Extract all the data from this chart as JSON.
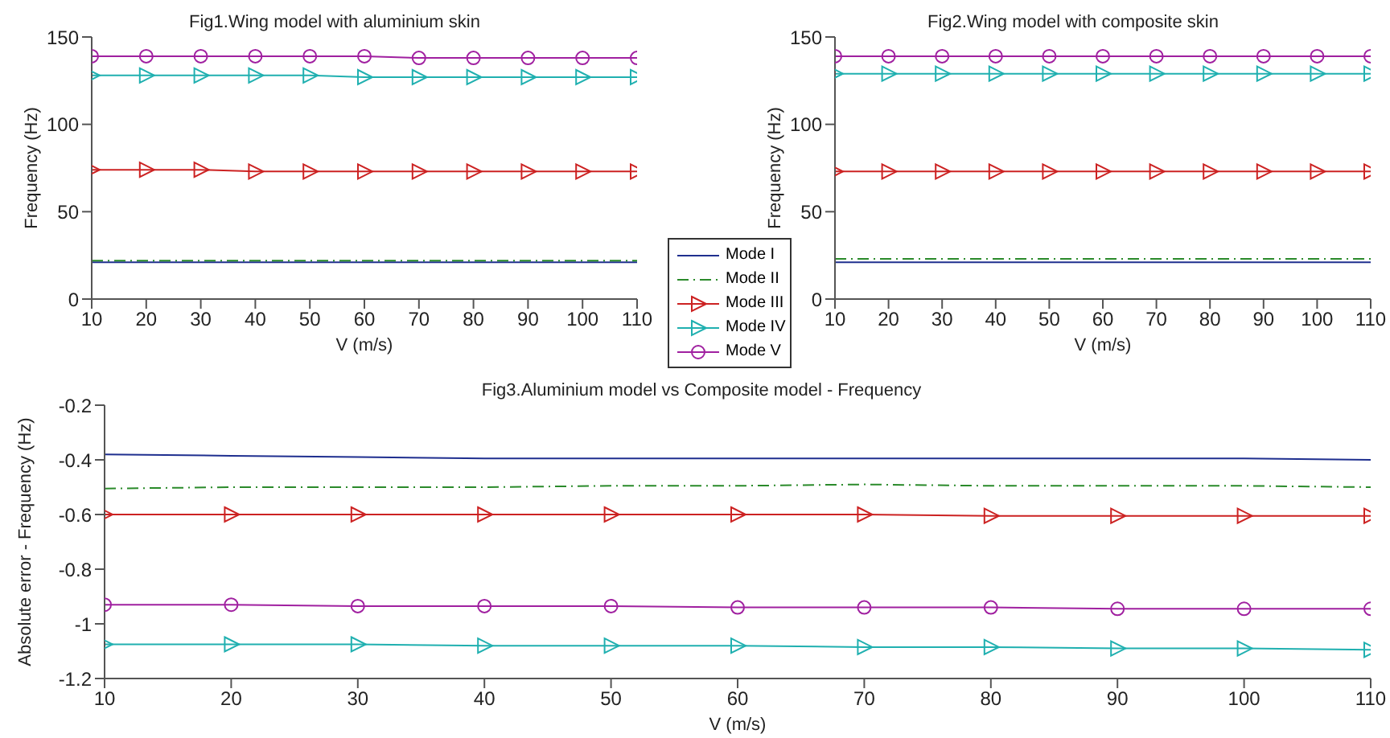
{
  "chart_data": [
    {
      "type": "line",
      "title": "Fig1.Wing model with aluminium skin",
      "xlabel": "V (m/s)",
      "ylabel": "Frequency (Hz)",
      "x": [
        10,
        20,
        30,
        40,
        50,
        60,
        70,
        80,
        90,
        100,
        110
      ],
      "xlim": [
        10,
        110
      ],
      "xticks": [
        10,
        20,
        30,
        40,
        50,
        60,
        70,
        80,
        90,
        100,
        110
      ],
      "ylim": [
        0,
        150
      ],
      "yticks": [
        0,
        50,
        100,
        150
      ],
      "legend": false,
      "series": [
        {
          "color": "#1f2f8f",
          "marker": "none",
          "line_style": "solid",
          "values": [
            21,
            21,
            21,
            21,
            21,
            21,
            21,
            21,
            21,
            21,
            21
          ]
        },
        {
          "color": "#2a8a2a",
          "marker": "none",
          "line_style": "dashed",
          "values": [
            22,
            22,
            22,
            22,
            22,
            22,
            22,
            22,
            22,
            22,
            22
          ]
        },
        {
          "color": "#cc2222",
          "marker": "triangle",
          "line_style": "solid",
          "values": [
            74,
            74,
            74,
            73,
            73,
            73,
            73,
            73,
            73,
            73,
            73
          ]
        },
        {
          "color": "#20b0b0",
          "marker": "triangle",
          "line_style": "solid",
          "values": [
            128,
            128,
            128,
            128,
            128,
            127,
            127,
            127,
            127,
            127,
            127
          ]
        },
        {
          "color": "#a020a0",
          "marker": "circle",
          "line_style": "solid",
          "values": [
            139,
            139,
            139,
            139,
            139,
            139,
            138,
            138,
            138,
            138,
            138
          ]
        }
      ]
    },
    {
      "type": "line",
      "title": "Fig2.Wing model with composite skin",
      "xlabel": "V (m/s)",
      "ylabel": "Frequency (Hz)",
      "x": [
        10,
        20,
        30,
        40,
        50,
        60,
        70,
        80,
        90,
        100,
        110
      ],
      "xlim": [
        10,
        110
      ],
      "xticks": [
        10,
        20,
        30,
        40,
        50,
        60,
        70,
        80,
        90,
        100,
        110
      ],
      "ylim": [
        0,
        150
      ],
      "yticks": [
        0,
        50,
        100,
        150
      ],
      "legend": "bottom left",
      "series": [
        {
          "name": "Mode I",
          "color": "#1f2f8f",
          "marker": "none",
          "line_style": "solid",
          "values": [
            21,
            21,
            21,
            21,
            21,
            21,
            21,
            21,
            21,
            21,
            21
          ]
        },
        {
          "name": "Mode II",
          "color": "#2a8a2a",
          "marker": "none",
          "line_style": "dashed",
          "values": [
            23,
            23,
            23,
            23,
            23,
            23,
            23,
            23,
            23,
            23,
            23
          ]
        },
        {
          "name": "Mode III",
          "color": "#cc2222",
          "marker": "triangle",
          "line_style": "solid",
          "values": [
            73,
            73,
            73,
            73,
            73,
            73,
            73,
            73,
            73,
            73,
            73
          ]
        },
        {
          "name": "Mode IV",
          "color": "#20b0b0",
          "marker": "triangle",
          "line_style": "solid",
          "values": [
            129,
            129,
            129,
            129,
            129,
            129,
            129,
            129,
            129,
            129,
            129
          ]
        },
        {
          "name": "Mode V",
          "color": "#a020a0",
          "marker": "circle",
          "line_style": "solid",
          "values": [
            139,
            139,
            139,
            139,
            139,
            139,
            139,
            139,
            139,
            139,
            139
          ]
        }
      ]
    },
    {
      "type": "line",
      "title": "Fig3.Aluminium model vs Composite model - Frequency",
      "xlabel": "V (m/s)",
      "ylabel": "Absolute error - Frequency (Hz)",
      "x": [
        10,
        20,
        30,
        40,
        50,
        60,
        70,
        80,
        90,
        100,
        110
      ],
      "xlim": [
        10,
        110
      ],
      "xticks": [
        10,
        20,
        30,
        40,
        50,
        60,
        70,
        80,
        90,
        100,
        110
      ],
      "ylim": [
        -1.2,
        -0.2
      ],
      "yticks": [
        -1.2,
        -1,
        -0.8,
        -0.6,
        -0.4,
        -0.2
      ],
      "legend": false,
      "series": [
        {
          "color": "#1f2f8f",
          "marker": "none",
          "line_style": "solid",
          "values": [
            -0.38,
            -0.385,
            -0.39,
            -0.395,
            -0.395,
            -0.395,
            -0.395,
            -0.395,
            -0.395,
            -0.395,
            -0.4
          ]
        },
        {
          "color": "#2a8a2a",
          "marker": "none",
          "line_style": "dashed",
          "values": [
            -0.505,
            -0.5,
            -0.5,
            -0.5,
            -0.495,
            -0.495,
            -0.49,
            -0.495,
            -0.495,
            -0.495,
            -0.5
          ]
        },
        {
          "color": "#cc2222",
          "marker": "triangle",
          "line_style": "solid",
          "values": [
            -0.6,
            -0.6,
            -0.6,
            -0.6,
            -0.6,
            -0.6,
            -0.6,
            -0.605,
            -0.605,
            -0.605,
            -0.605
          ]
        },
        {
          "color": "#20b0b0",
          "marker": "triangle",
          "line_style": "solid",
          "values": [
            -1.075,
            -1.075,
            -1.075,
            -1.08,
            -1.08,
            -1.08,
            -1.085,
            -1.085,
            -1.09,
            -1.09,
            -1.095
          ]
        },
        {
          "color": "#a020a0",
          "marker": "circle",
          "line_style": "solid",
          "values": [
            -0.93,
            -0.93,
            -0.935,
            -0.935,
            -0.935,
            -0.94,
            -0.94,
            -0.94,
            -0.945,
            -0.945,
            -0.945
          ]
        }
      ]
    }
  ]
}
